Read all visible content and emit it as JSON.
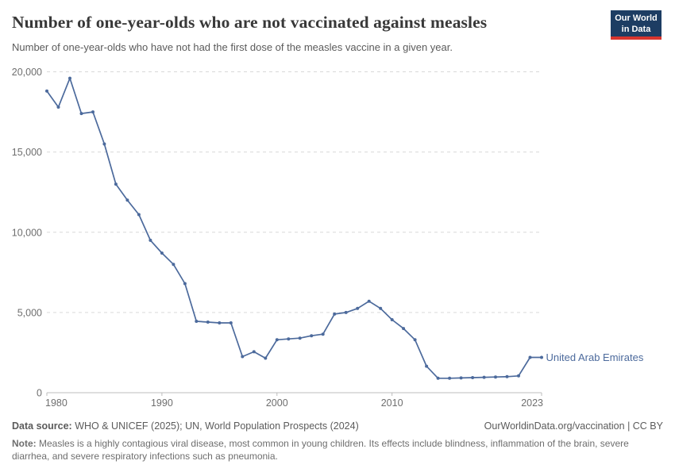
{
  "header": {
    "title": "Number of one-year-olds who are not vaccinated against measles",
    "subtitle": "Number of one-year-olds who have not had the first dose of the measles vaccine in a given year.",
    "logo_line1": "Our World",
    "logo_line2": "in Data",
    "logo_bg_color": "#1d3d63",
    "logo_bar_color": "#d8352e"
  },
  "chart_data": {
    "type": "line",
    "title": "Number of one-year-olds who are not vaccinated against measles",
    "xlabel": "",
    "ylabel": "",
    "xlim": [
      1980,
      2023
    ],
    "ylim": [
      0,
      20000
    ],
    "grid": "horizontal-dashed",
    "legend_position": "end-of-line-label",
    "x_ticks": [
      1980,
      1990,
      2000,
      2010,
      2023
    ],
    "y_ticks": [
      0,
      5000,
      10000,
      15000,
      20000
    ],
    "y_tick_labels": [
      "0",
      "5,000",
      "10,000",
      "15,000",
      "20,000"
    ],
    "line_color": "#4c6a9c",
    "axis_color": "#bcbcbc",
    "grid_color": "#d9d9d9",
    "tick_label_color": "#6e6e6e",
    "series": [
      {
        "name": "United Arab Emirates",
        "color": "#4c6a9c",
        "x": [
          1980,
          1981,
          1982,
          1983,
          1984,
          1985,
          1986,
          1987,
          1988,
          1989,
          1990,
          1991,
          1992,
          1993,
          1994,
          1995,
          1996,
          1997,
          1998,
          1999,
          2000,
          2001,
          2002,
          2003,
          2004,
          2005,
          2006,
          2007,
          2008,
          2009,
          2010,
          2011,
          2012,
          2013,
          2014,
          2015,
          2016,
          2017,
          2018,
          2019,
          2020,
          2021,
          2022,
          2023
        ],
        "values": [
          18800,
          17800,
          19600,
          17400,
          17500,
          15500,
          13000,
          12000,
          11100,
          9500,
          8700,
          8000,
          6800,
          4450,
          4400,
          4350,
          4350,
          2250,
          2550,
          2150,
          3300,
          3350,
          3400,
          3550,
          3650,
          4900,
          5000,
          5250,
          5700,
          5250,
          4550,
          4000,
          3300,
          1650,
          900,
          900,
          920,
          940,
          960,
          980,
          1000,
          1050,
          2200,
          2200
        ]
      }
    ]
  },
  "footer": {
    "datasource_label": "Data source:",
    "datasource": " WHO & UNICEF (2025); UN, World Population Prospects (2024)",
    "attribution": "OurWorldinData.org/vaccination | CC BY",
    "note_label": "Note:",
    "note": " Measles is a highly contagious viral disease, most common in young children. Its effects include blindness, inflammation of the brain, severe diarrhea, and severe respiratory infections such as pneumonia."
  }
}
